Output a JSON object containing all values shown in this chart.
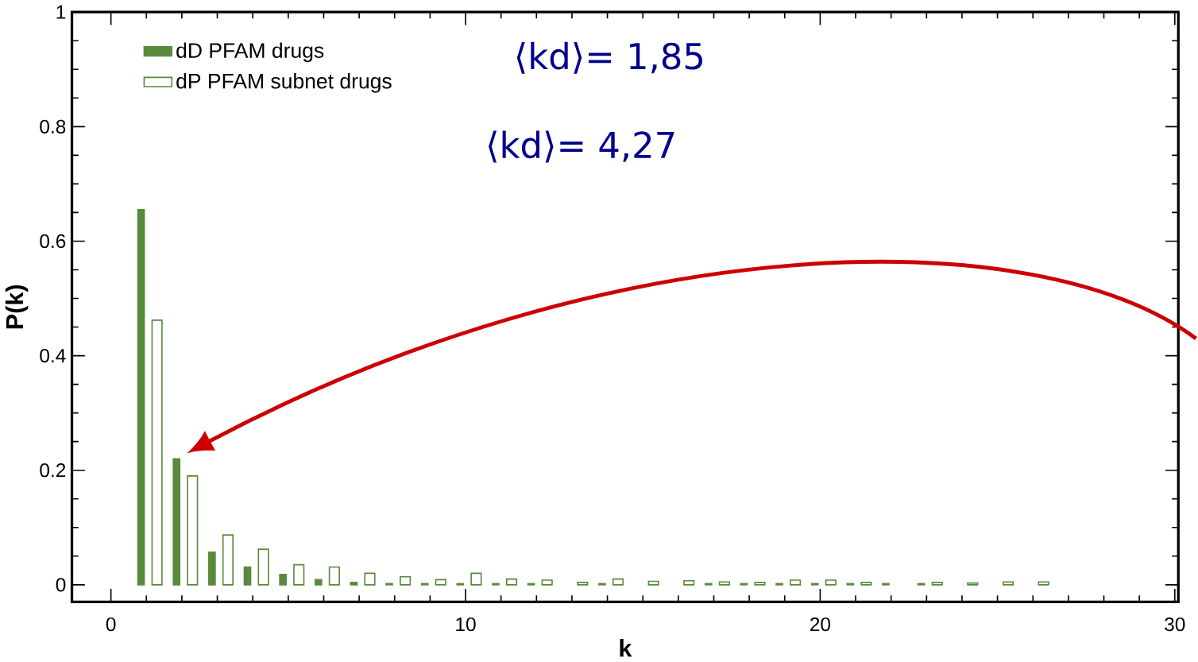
{
  "chart_data": {
    "type": "bar",
    "xlabel": "k",
    "ylabel": "P(k)",
    "x": [
      1,
      2,
      3,
      4,
      5,
      6,
      7,
      8,
      9,
      10,
      11,
      12,
      13,
      14,
      15,
      16,
      17,
      18,
      19,
      20,
      21,
      22,
      23,
      24,
      25,
      26
    ],
    "series": [
      {
        "name": "dD PFAM drugs",
        "color": "#5a8a3c",
        "values": [
          0.655,
          0.22,
          0.057,
          0.031,
          0.018,
          0.009,
          0.004,
          0.002,
          0.002,
          0.002,
          0.002,
          0.002,
          null,
          0.002,
          null,
          null,
          0.002,
          0.002,
          0.002,
          0.002,
          0.002,
          0.002,
          0.002,
          null,
          null,
          null
        ]
      },
      {
        "name": "dP PFAM subnet drugs",
        "color": "#5a8a3c",
        "values": [
          0.462,
          0.19,
          0.087,
          0.062,
          0.035,
          0.031,
          0.02,
          0.014,
          0.009,
          0.02,
          0.01,
          0.008,
          0.004,
          0.01,
          0.006,
          0.007,
          0.005,
          0.004,
          0.008,
          0.008,
          0.004,
          null,
          0.004,
          0.003,
          0.005,
          0.005
        ]
      }
    ],
    "xlim": [
      -1.1,
      30.1
    ],
    "ylim": [
      -0.03,
      1
    ],
    "xticks": [
      0,
      10,
      20,
      30
    ],
    "yticks": [
      0,
      0.2,
      0.4,
      0.6,
      0.8,
      1
    ],
    "legend": "top left",
    "grid": false,
    "annotations": [
      "⟨kd⟩= 1,85",
      "⟨kd⟩= 4,27"
    ]
  }
}
